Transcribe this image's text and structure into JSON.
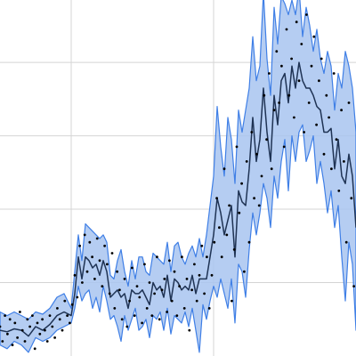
{
  "colors": {
    "band_fill": "#a8c4f0",
    "band_stroke": "#3f7fe6",
    "mean_line": "#1f3354",
    "points": "#000000",
    "grid": "#d4d4d4",
    "background": "#ffffff"
  },
  "chart_data": {
    "type": "area",
    "title": "",
    "xlabel": "",
    "ylabel": "",
    "grid": true,
    "legend": "none",
    "xlim": [
      0,
      100
    ],
    "ylim": [
      -0.05,
      4.8
    ],
    "x_gridlines": [
      20,
      60
    ],
    "y_gridlines": [
      0.95,
      1.95,
      2.95,
      3.95
    ],
    "series": [
      {
        "role": "band_upper",
        "x": [
          0,
          2,
          4,
          6,
          8,
          10,
          12,
          14,
          16,
          18,
          20,
          21,
          22,
          23,
          24,
          25,
          26,
          27,
          28,
          29,
          30,
          31,
          32,
          33,
          34,
          35,
          36,
          37,
          38,
          39,
          40,
          41,
          42,
          43,
          44,
          45,
          46,
          47,
          48,
          49,
          50,
          51,
          52,
          53,
          54,
          55,
          56,
          57,
          58,
          59,
          60,
          61,
          62,
          63,
          64,
          65,
          66,
          67,
          68,
          69,
          70,
          71,
          72,
          73,
          74,
          75,
          76,
          77,
          78,
          79,
          80,
          81,
          82,
          83,
          84,
          85,
          86,
          87,
          88,
          89,
          90,
          91,
          92,
          93,
          94,
          95,
          96,
          97,
          98,
          99,
          100
        ],
        "values": [
          0.55,
          0.5,
          0.55,
          0.5,
          0.45,
          0.55,
          0.52,
          0.6,
          0.75,
          0.8,
          0.6,
          1.1,
          1.6,
          1.25,
          1.75,
          1.7,
          1.65,
          1.6,
          1.55,
          1.6,
          1.5,
          1.05,
          1.0,
          1.25,
          1.4,
          1.1,
          0.9,
          1.25,
          1.0,
          1.3,
          1.3,
          1.1,
          1.05,
          1.35,
          1.3,
          1.25,
          1.2,
          1.5,
          1.1,
          1.45,
          1.5,
          1.3,
          1.2,
          1.35,
          1.45,
          1.3,
          1.55,
          1.3,
          1.6,
          2.0,
          2.4,
          3.35,
          2.8,
          2.4,
          3.2,
          2.9,
          2.3,
          3.3,
          3.0,
          3.3,
          3.6,
          4.3,
          3.7,
          3.9,
          4.9,
          4.0,
          3.5,
          4.7,
          4.2,
          4.85,
          4.75,
          4.6,
          4.8,
          4.6,
          4.95,
          4.3,
          4.7,
          4.45,
          4.1,
          4.4,
          4.0,
          3.8,
          4.1,
          3.9,
          3.3,
          3.8,
          3.6,
          4.1,
          3.9,
          3.6,
          3.0
        ]
      },
      {
        "role": "band_lower",
        "x": [
          0,
          2,
          4,
          6,
          8,
          10,
          12,
          14,
          16,
          18,
          20,
          21,
          22,
          23,
          24,
          25,
          26,
          27,
          28,
          29,
          30,
          31,
          32,
          33,
          34,
          35,
          36,
          37,
          38,
          39,
          40,
          41,
          42,
          43,
          44,
          45,
          46,
          47,
          48,
          49,
          50,
          51,
          52,
          53,
          54,
          55,
          56,
          57,
          58,
          59,
          60,
          61,
          62,
          63,
          64,
          65,
          66,
          67,
          68,
          69,
          70,
          71,
          72,
          73,
          74,
          75,
          76,
          77,
          78,
          79,
          80,
          81,
          82,
          83,
          84,
          85,
          86,
          87,
          88,
          89,
          90,
          91,
          92,
          93,
          94,
          95,
          96,
          97,
          98,
          99,
          100
        ],
        "values": [
          0.1,
          0.05,
          0.15,
          0.1,
          0.0,
          0.2,
          0.15,
          0.2,
          0.3,
          0.35,
          0.4,
          0.6,
          0.9,
          0.7,
          0.8,
          0.85,
          0.6,
          0.75,
          0.55,
          0.9,
          0.7,
          0.45,
          0.5,
          0.35,
          0.15,
          0.5,
          0.3,
          0.45,
          0.6,
          0.3,
          0.35,
          0.45,
          0.2,
          0.5,
          0.45,
          0.55,
          0.3,
          0.6,
          0.25,
          0.5,
          0.45,
          0.4,
          0.55,
          0.35,
          0.6,
          0.3,
          0.0,
          0.65,
          0.45,
          0.7,
          0.9,
          0.75,
          1.0,
          0.8,
          0.6,
          1.0,
          0.4,
          1.2,
          1.1,
          0.75,
          1.4,
          1.9,
          1.6,
          1.9,
          2.3,
          2.1,
          1.7,
          2.4,
          2.1,
          2.6,
          2.9,
          2.2,
          2.95,
          2.6,
          3.0,
          3.1,
          2.6,
          2.75,
          2.95,
          2.3,
          2.6,
          2.3,
          1.9,
          2.2,
          1.7,
          2.0,
          1.3,
          0.7,
          1.5,
          1.2,
          0.3
        ]
      },
      {
        "role": "mean",
        "x": [
          0,
          2,
          4,
          6,
          8,
          10,
          12,
          14,
          16,
          18,
          20,
          21,
          22,
          23,
          24,
          25,
          26,
          27,
          28,
          29,
          30,
          31,
          32,
          33,
          34,
          35,
          36,
          37,
          38,
          39,
          40,
          41,
          42,
          43,
          44,
          45,
          46,
          47,
          48,
          49,
          50,
          51,
          52,
          53,
          54,
          55,
          56,
          57,
          58,
          59,
          60,
          61,
          62,
          63,
          64,
          65,
          66,
          67,
          68,
          69,
          70,
          71,
          72,
          73,
          74,
          75,
          76,
          77,
          78,
          79,
          80,
          81,
          82,
          83,
          84,
          85,
          86,
          87,
          88,
          89,
          90,
          91,
          92,
          93,
          94,
          95,
          96,
          97,
          98,
          99,
          100
        ],
        "values": [
          0.3,
          0.28,
          0.32,
          0.3,
          0.22,
          0.35,
          0.3,
          0.38,
          0.5,
          0.55,
          0.5,
          0.8,
          1.3,
          1.0,
          1.3,
          1.25,
          1.15,
          1.2,
          1.05,
          1.25,
          1.1,
          0.75,
          0.8,
          0.85,
          0.75,
          0.8,
          0.6,
          0.85,
          0.8,
          0.8,
          0.85,
          0.75,
          0.65,
          0.95,
          0.85,
          0.9,
          0.75,
          1.05,
          0.7,
          1.0,
          0.95,
          0.85,
          0.9,
          0.85,
          1.05,
          0.8,
          1.0,
          1.0,
          1.0,
          1.3,
          1.6,
          2.1,
          1.9,
          1.6,
          1.8,
          2.0,
          1.3,
          2.2,
          2.05,
          2.0,
          2.5,
          3.2,
          2.6,
          2.9,
          3.6,
          3.0,
          2.6,
          3.5,
          3.1,
          3.7,
          3.8,
          3.4,
          3.9,
          3.6,
          3.95,
          3.7,
          3.6,
          3.6,
          3.5,
          3.35,
          3.3,
          3.0,
          3.0,
          3.05,
          2.5,
          2.9,
          2.4,
          2.3,
          2.7,
          2.4,
          1.7
        ]
      },
      {
        "role": "samples",
        "x": [
          0,
          0.7,
          1.4,
          2.1,
          2.8,
          3.5,
          4.2,
          4.9,
          5.6,
          6.3,
          7,
          7.7,
          8.4,
          9.1,
          9.8,
          10.5,
          11.2,
          11.9,
          12.6,
          13.3,
          14,
          14.7,
          15.4,
          16.1,
          16.8,
          17.5,
          18.2,
          18.9,
          19.6,
          20.3,
          21,
          21.7,
          22.4,
          23.1,
          23.8,
          24.5,
          25.2,
          25.9,
          26.6,
          27.3,
          28,
          28.7,
          29.4,
          30.1,
          30.8,
          31.5,
          32.2,
          32.9,
          33.6,
          34.3,
          35,
          35.7,
          36.4,
          37.1,
          37.8,
          38.5,
          39.2,
          39.9,
          40.6,
          41.3,
          42,
          42.7,
          43.4,
          44.1,
          44.8,
          45.5,
          46.2,
          46.9,
          47.6,
          48.3,
          49,
          49.7,
          50.4,
          51.1,
          51.8,
          52.5,
          53.2,
          53.9,
          54.6,
          55.3,
          56,
          56.7,
          57.4,
          58.1,
          58.8,
          59.5,
          60.2,
          60.9,
          61.6,
          62.3,
          63,
          63.7,
          64.4,
          65.1,
          65.8,
          66.5,
          67.2,
          67.9,
          68.6,
          69.3,
          70,
          70.7,
          71.4,
          72.1,
          72.8,
          73.5,
          74.2,
          74.9,
          75.6,
          76.3,
          77,
          77.7,
          78.4,
          79.1,
          79.8,
          80.5,
          81.2,
          81.9,
          82.6,
          83.3,
          84,
          84.7,
          85.4,
          86.1,
          86.8,
          87.5,
          88.2,
          88.9,
          89.6,
          90.3,
          91,
          91.7,
          92.4,
          93.1,
          93.8,
          94.5,
          95.2,
          95.9,
          96.6,
          97.3,
          98,
          98.7,
          99.4
        ],
        "values": [
          0.35,
          0.15,
          0.5,
          0.25,
          0.45,
          0.1,
          0.4,
          0.2,
          0.55,
          0.3,
          0.15,
          0.45,
          0.35,
          0.5,
          0.05,
          0.4,
          0.25,
          0.45,
          0.3,
          0.15,
          0.5,
          0.35,
          0.2,
          0.6,
          0.45,
          0.3,
          0.7,
          0.5,
          0.4,
          0.65,
          1.05,
          0.75,
          1.45,
          0.95,
          1.6,
          1.1,
          1.5,
          1.3,
          1.0,
          1.55,
          1.25,
          0.9,
          1.45,
          1.2,
          0.8,
          1.35,
          0.6,
          1.1,
          0.85,
          0.45,
          1.0,
          0.35,
          0.7,
          1.15,
          0.5,
          0.9,
          0.75,
          0.4,
          1.2,
          0.6,
          0.95,
          0.5,
          0.8,
          1.3,
          0.45,
          0.85,
          1.0,
          0.55,
          1.25,
          0.7,
          1.1,
          0.5,
          0.9,
          1.3,
          0.6,
          1.0,
          0.3,
          0.85,
          1.2,
          0.7,
          1.05,
          1.45,
          0.8,
          1.3,
          0.6,
          1.05,
          1.5,
          2.1,
          1.7,
          1.3,
          2.5,
          1.6,
          2.0,
          0.7,
          1.4,
          2.8,
          1.9,
          2.3,
          1.1,
          2.6,
          1.5,
          3.0,
          2.1,
          2.7,
          2.0,
          2.4,
          3.5,
          2.9,
          3.8,
          2.5,
          3.3,
          4.1,
          3.4,
          3.9,
          2.8,
          4.4,
          3.5,
          4.0,
          3.2,
          4.5,
          3.7,
          4.2,
          3.0,
          4.6,
          3.4,
          3.9,
          4.3,
          3.1,
          3.7,
          4.0,
          2.7,
          3.5,
          3.2,
          2.5,
          3.8,
          2.9,
          2.2,
          3.3,
          2.6,
          1.5,
          3.4,
          2.1,
          0.9
        ]
      }
    ]
  }
}
